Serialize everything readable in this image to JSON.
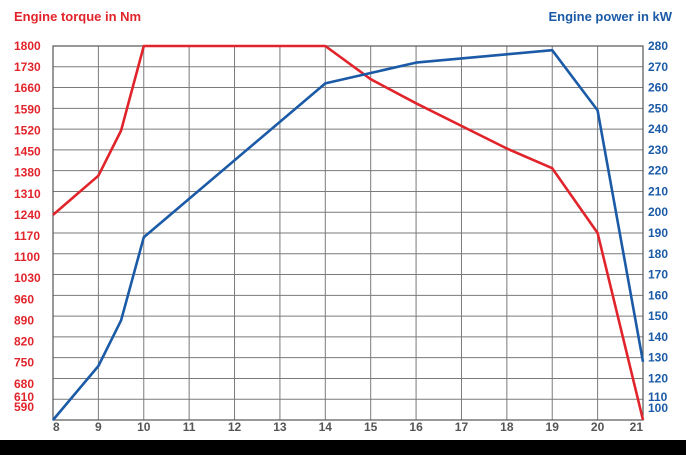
{
  "chart_data": {
    "type": "line",
    "x_ticks": [
      8,
      9,
      10,
      11,
      12,
      13,
      14,
      15,
      16,
      17,
      18,
      19,
      20,
      21
    ],
    "xlim": [
      8,
      21
    ],
    "left_axis": {
      "title": "Engine torque in Nm",
      "ticks": [
        590,
        610,
        680,
        750,
        820,
        890,
        960,
        1030,
        1100,
        1170,
        1240,
        1310,
        1380,
        1450,
        1520,
        1590,
        1660,
        1730,
        1800
      ],
      "ylim": [
        560,
        1800
      ],
      "color": "#e1242b"
    },
    "right_axis": {
      "title": "Engine power in kW",
      "ticks": [
        100,
        110,
        120,
        130,
        140,
        150,
        160,
        170,
        180,
        190,
        200,
        210,
        220,
        230,
        240,
        250,
        260,
        270,
        280
      ],
      "ylim": [
        100,
        280
      ],
      "color": "#1b5aa6"
    },
    "series": [
      {
        "axis": "left",
        "color": "#e1242b",
        "points": [
          [
            8,
            1240
          ],
          [
            9,
            1370
          ],
          [
            9.5,
            1520
          ],
          [
            10,
            1800
          ],
          [
            14,
            1800
          ],
          [
            15,
            1690
          ],
          [
            16,
            1610
          ],
          [
            18,
            1460
          ],
          [
            19,
            1395
          ],
          [
            20,
            1180
          ],
          [
            21,
            560
          ]
        ]
      },
      {
        "axis": "right",
        "color": "#1b5aa6",
        "points": [
          [
            8,
            100
          ],
          [
            9,
            126
          ],
          [
            9.5,
            148
          ],
          [
            10,
            188
          ],
          [
            14,
            262
          ],
          [
            15,
            267
          ],
          [
            16,
            272
          ],
          [
            18,
            276
          ],
          [
            19,
            278
          ],
          [
            20,
            249
          ],
          [
            21,
            128
          ]
        ]
      }
    ]
  }
}
